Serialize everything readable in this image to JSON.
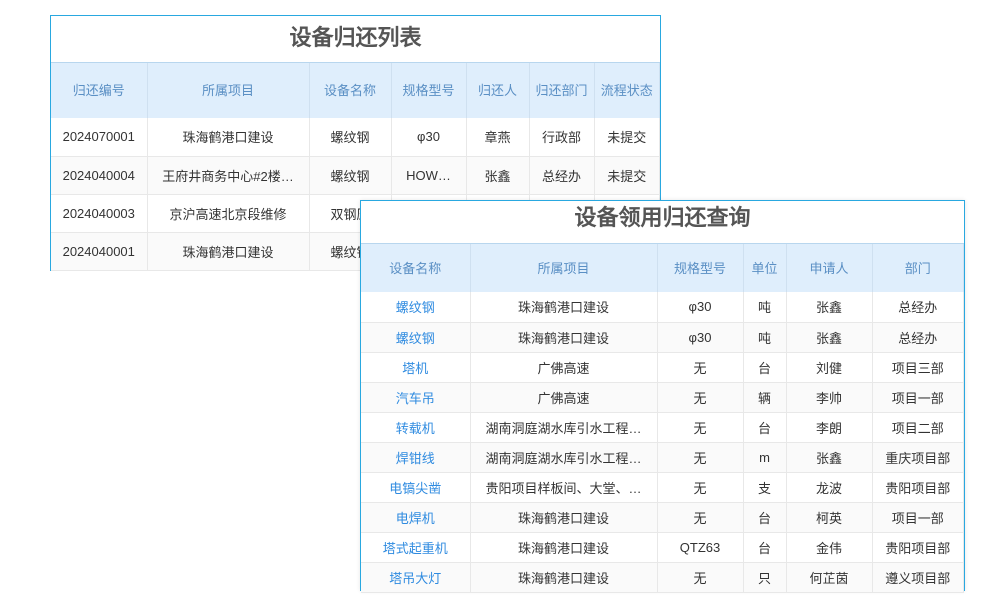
{
  "return_list": {
    "title": "设备归还列表",
    "columns": [
      "归还编号",
      "所属项目",
      "设备名称",
      "规格型号",
      "归还人",
      "归还部门",
      "流程状态"
    ],
    "rows": [
      [
        "2024070001",
        "珠海鹤港口建设",
        "螺纹钢",
        "φ30",
        "章燕",
        "行政部",
        "未提交"
      ],
      [
        "2024040004",
        "王府井商务中心#2楼…",
        "螺纹钢",
        "HOW…",
        "张鑫",
        "总经办",
        "未提交"
      ],
      [
        "2024040003",
        "京沪高速北京段维修",
        "双钢压",
        "",
        "",
        "",
        ""
      ],
      [
        "2024040001",
        "珠海鹤港口建设",
        "螺纹钢",
        "",
        "",
        "",
        ""
      ]
    ]
  },
  "query": {
    "title": "设备领用归还查询",
    "columns": [
      "设备名称",
      "所属项目",
      "规格型号",
      "单位",
      "申请人",
      "部门"
    ],
    "rows": [
      [
        "螺纹钢",
        "珠海鹤港口建设",
        "φ30",
        "吨",
        "张鑫",
        "总经办"
      ],
      [
        "螺纹钢",
        "珠海鹤港口建设",
        "φ30",
        "吨",
        "张鑫",
        "总经办"
      ],
      [
        "塔机",
        "广佛高速",
        "无",
        "台",
        "刘健",
        "项目三部"
      ],
      [
        "汽车吊",
        "广佛高速",
        "无",
        "辆",
        "李帅",
        "项目一部"
      ],
      [
        "转载机",
        "湖南洞庭湖水库引水工程…",
        "无",
        "台",
        "李朗",
        "项目二部"
      ],
      [
        "焊钳线",
        "湖南洞庭湖水库引水工程…",
        "无",
        "m",
        "张鑫",
        "重庆项目部"
      ],
      [
        "电镐尖凿",
        "贵阳项目样板间、大堂、…",
        "无",
        "支",
        "龙波",
        "贵阳项目部"
      ],
      [
        "电焊机",
        "珠海鹤港口建设",
        "无",
        "台",
        "柯英",
        "项目一部"
      ],
      [
        "塔式起重机",
        "珠海鹤港口建设",
        "QTZ63",
        "台",
        "金伟",
        "贵阳项目部"
      ],
      [
        "塔吊大灯",
        "珠海鹤港口建设",
        "无",
        "只",
        "何芷茵",
        "遵义项目部"
      ]
    ]
  },
  "colors": {
    "border": "#29a8e0",
    "header_bg": "#dfeefc",
    "header_text": "#5a8fc4",
    "link": "#2f8be0"
  }
}
